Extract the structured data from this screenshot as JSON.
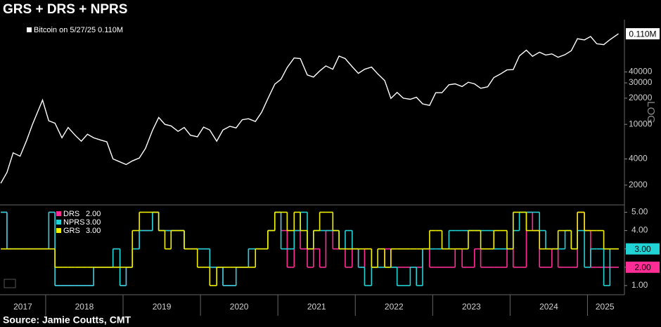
{
  "chart_data": [
    {
      "type": "line",
      "title": "GRS + DRS + NPRS",
      "log": true,
      "y_scale_label": "LOG",
      "xlim": [
        2017.41,
        2025.45
      ],
      "ylim": [
        1230,
        154000
      ],
      "yticks": [
        2000,
        4000,
        10000,
        20000,
        30000,
        40000
      ],
      "x": [
        2017.42,
        2017.5,
        2017.58,
        2017.67,
        2017.75,
        2017.83,
        2017.96,
        2018.04,
        2018.12,
        2018.21,
        2018.29,
        2018.38,
        2018.46,
        2018.54,
        2018.62,
        2018.71,
        2018.79,
        2018.87,
        2018.96,
        2019.04,
        2019.12,
        2019.21,
        2019.29,
        2019.38,
        2019.46,
        2019.54,
        2019.62,
        2019.71,
        2019.79,
        2019.87,
        2019.96,
        2020.04,
        2020.12,
        2020.21,
        2020.29,
        2020.38,
        2020.46,
        2020.54,
        2020.62,
        2020.71,
        2020.79,
        2020.87,
        2020.96,
        2021.04,
        2021.12,
        2021.21,
        2021.29,
        2021.38,
        2021.46,
        2021.54,
        2021.62,
        2021.71,
        2021.79,
        2021.87,
        2021.96,
        2022.04,
        2022.12,
        2022.21,
        2022.29,
        2022.38,
        2022.46,
        2022.54,
        2022.62,
        2022.71,
        2022.79,
        2022.87,
        2022.96,
        2023.04,
        2023.12,
        2023.21,
        2023.29,
        2023.38,
        2023.46,
        2023.54,
        2023.62,
        2023.71,
        2023.79,
        2023.87,
        2023.96,
        2024.04,
        2024.12,
        2024.21,
        2024.29,
        2024.38,
        2024.46,
        2024.54,
        2024.62,
        2024.71,
        2024.79,
        2024.87,
        2024.96,
        2025.04,
        2025.12,
        2025.21,
        2025.29,
        2025.4
      ],
      "series": [
        {
          "name": "Bitcoin on 5/27/25",
          "color": "#ffffff",
          "current_label": "0.110M",
          "values": [
            2100,
            2800,
            4700,
            4300,
            6400,
            10000,
            19000,
            11000,
            10300,
            7000,
            9200,
            7500,
            6400,
            7700,
            7000,
            6600,
            6300,
            4000,
            3700,
            3450,
            3800,
            4100,
            5300,
            8500,
            12000,
            10000,
            9600,
            8300,
            9200,
            7500,
            7200,
            9300,
            8600,
            6400,
            8600,
            9500,
            9100,
            11300,
            11600,
            10800,
            13800,
            19700,
            29000,
            33000,
            45000,
            58000,
            57000,
            37000,
            35000,
            41000,
            47000,
            43000,
            61000,
            57000,
            46000,
            38500,
            43000,
            45500,
            38000,
            31800,
            19900,
            23300,
            20000,
            19400,
            20500,
            17200,
            16500,
            23100,
            23100,
            28500,
            29200,
            27200,
            30500,
            29200,
            26000,
            27000,
            34500,
            37700,
            42300,
            42600,
            61200,
            71300,
            60600,
            67500,
            62700,
            64600,
            59000,
            63300,
            70200,
            96400,
            93400,
            102400,
            84400,
            82500,
            94200,
            110000
          ]
        }
      ]
    },
    {
      "type": "step",
      "source": "Source: Jamie Coutts, CMT",
      "xlim": [
        2017.41,
        2025.45
      ],
      "ylim": [
        0.5,
        5.4
      ],
      "xticks": [
        2017,
        2018,
        2019,
        2020,
        2021,
        2022,
        2023,
        2024,
        2025
      ],
      "yticks": [
        {
          "value": 1,
          "label": "1.00"
        },
        {
          "value": 2,
          "label": "2.00"
        },
        {
          "value": 3,
          "label": "3.00"
        },
        {
          "value": 4,
          "label": "4.00"
        },
        {
          "value": 5,
          "label": "5.00"
        }
      ],
      "x": [
        2017.42,
        2017.5,
        2017.58,
        2017.67,
        2017.75,
        2017.83,
        2017.96,
        2018.04,
        2018.12,
        2018.21,
        2018.29,
        2018.38,
        2018.46,
        2018.54,
        2018.62,
        2018.71,
        2018.79,
        2018.87,
        2018.96,
        2019.04,
        2019.12,
        2019.21,
        2019.29,
        2019.38,
        2019.46,
        2019.54,
        2019.62,
        2019.71,
        2019.79,
        2019.87,
        2019.96,
        2020.04,
        2020.12,
        2020.21,
        2020.29,
        2020.38,
        2020.46,
        2020.54,
        2020.62,
        2020.71,
        2020.79,
        2020.87,
        2020.96,
        2021.04,
        2021.12,
        2021.21,
        2021.29,
        2021.38,
        2021.46,
        2021.54,
        2021.62,
        2021.71,
        2021.79,
        2021.87,
        2021.96,
        2022.04,
        2022.12,
        2022.21,
        2022.29,
        2022.38,
        2022.46,
        2022.54,
        2022.62,
        2022.71,
        2022.79,
        2022.87,
        2022.96,
        2023.04,
        2023.12,
        2023.21,
        2023.29,
        2023.38,
        2023.46,
        2023.54,
        2023.62,
        2023.71,
        2023.79,
        2023.87,
        2023.96,
        2024.04,
        2024.12,
        2024.21,
        2024.29,
        2024.38,
        2024.46,
        2024.54,
        2024.62,
        2024.71,
        2024.79,
        2024.87,
        2024.96,
        2025.04,
        2025.12,
        2025.21,
        2025.29,
        2025.4
      ],
      "series": [
        {
          "name": "DRS",
          "color": "#ff2d95",
          "current_label": "2.00",
          "values": [
            5,
            3,
            3,
            3,
            3,
            3,
            3,
            5,
            1,
            1,
            1,
            1,
            1,
            1,
            2,
            2,
            2,
            3,
            1,
            2,
            3,
            4,
            4,
            5,
            4,
            4,
            4,
            4,
            3,
            3,
            3,
            3,
            2,
            2,
            1,
            1,
            2,
            2,
            3,
            3,
            3,
            4,
            5,
            4,
            2,
            4,
            3,
            2,
            3,
            2,
            4,
            3,
            3,
            2,
            3,
            2,
            3,
            2,
            2,
            3,
            2,
            2,
            2,
            2,
            2,
            3,
            2,
            2,
            2,
            2,
            3,
            2,
            2,
            3,
            2,
            2,
            2,
            2,
            3,
            2,
            2,
            5,
            4,
            2,
            2,
            3,
            2,
            2,
            2,
            5,
            4,
            2,
            2,
            2,
            2,
            2
          ]
        },
        {
          "name": "NPRS",
          "color": "#22d3d6",
          "current_label": "3.00",
          "values": [
            5,
            3,
            3,
            3,
            3,
            3,
            3,
            5,
            1,
            1,
            1,
            1,
            1,
            1,
            2,
            2,
            2,
            3,
            1,
            2,
            3,
            4,
            4,
            5,
            4,
            4,
            4,
            4,
            3,
            3,
            3,
            3,
            2,
            2,
            1,
            1,
            2,
            2,
            3,
            3,
            3,
            4,
            5,
            3,
            3,
            4,
            5,
            3,
            4,
            4,
            4,
            4,
            3,
            4,
            3,
            2,
            1,
            2,
            2,
            2,
            2,
            1,
            1,
            2,
            1,
            3,
            3,
            3,
            3,
            4,
            4,
            4,
            4,
            4,
            4,
            4,
            3,
            3,
            3,
            4,
            5,
            5,
            5,
            4,
            3,
            3,
            3,
            4,
            3,
            4,
            2,
            3,
            3,
            1,
            3,
            3
          ]
        },
        {
          "name": "GRS",
          "color": "#f2f200",
          "current_label": "3.00",
          "values": [
            3,
            3,
            3,
            3,
            3,
            3,
            3,
            3,
            2,
            2,
            2,
            2,
            2,
            2,
            2,
            2,
            2,
            2,
            2,
            2,
            4,
            5,
            5,
            5,
            4,
            3,
            4,
            4,
            3,
            3,
            2,
            2,
            1,
            2,
            2,
            2,
            2,
            2,
            2,
            3,
            3,
            4,
            5,
            5,
            4,
            5,
            4,
            3,
            4,
            5,
            5,
            4,
            3,
            3,
            3,
            3,
            3,
            2,
            3,
            2,
            3,
            3,
            3,
            3,
            3,
            3,
            4,
            4,
            3,
            3,
            3,
            3,
            4,
            4,
            3,
            3,
            4,
            4,
            3,
            5,
            5,
            4,
            4,
            3,
            3,
            3,
            4,
            4,
            3,
            5,
            4,
            4,
            4,
            3,
            3,
            3
          ]
        }
      ]
    }
  ]
}
